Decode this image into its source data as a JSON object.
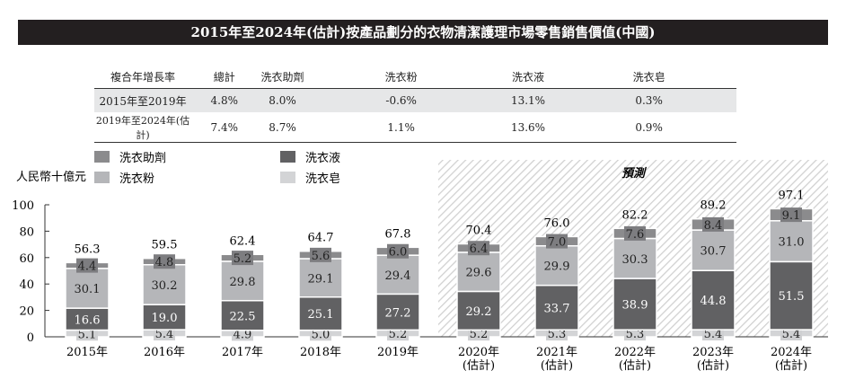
{
  "title": "2015年至2024年(估計)按產品劃分的衣物清潔護理市場零售銷售價值(中國)",
  "cagr_table": {
    "headers": [
      "複合年增長率",
      "總計",
      "洗衣助劑",
      "洗衣粉",
      "洗衣液",
      "洗衣皂"
    ],
    "rows": [
      [
        "2015年至2019年",
        "4.8%",
        "8.0%",
        "-0.6%",
        "13.1%",
        "0.3%"
      ],
      [
        "2019年至2024年(估計)",
        "7.4%",
        "8.7%",
        "1.1%",
        "13.6%",
        "0.9%"
      ]
    ]
  },
  "chart_data": {
    "type": "bar",
    "stacked": true,
    "ylabel": "人民幣十億元",
    "ylim": [
      0,
      100
    ],
    "yticks": [
      0,
      20,
      40,
      60,
      80,
      100
    ],
    "forecast_label": "預測",
    "categories": [
      "2015年",
      "2016年",
      "2017年",
      "2018年",
      "2019年",
      "2020年\n(估計)",
      "2021年\n(估計)",
      "2022年\n(估計)",
      "2023年\n(估計)",
      "2024年\n(估計)"
    ],
    "forecast_start_index": 5,
    "totals": [
      56.3,
      59.5,
      62.4,
      64.7,
      67.8,
      70.4,
      76.0,
      82.2,
      89.2,
      97.1
    ],
    "series": [
      {
        "name": "洗衣皂",
        "color": "#d3d4d6",
        "values": [
          5.1,
          5.4,
          4.9,
          5.0,
          5.2,
          5.2,
          5.3,
          5.3,
          5.4,
          5.4
        ]
      },
      {
        "name": "洗衣液",
        "color": "#616163",
        "values": [
          16.6,
          19.0,
          22.5,
          25.1,
          27.2,
          29.2,
          33.7,
          38.9,
          44.8,
          51.5
        ]
      },
      {
        "name": "洗衣粉",
        "color": "#b5b6b9",
        "values": [
          30.1,
          30.2,
          29.8,
          29.1,
          29.4,
          29.6,
          29.9,
          30.3,
          30.7,
          31.0
        ]
      },
      {
        "name": "洗衣助劑",
        "color": "#8b8b8d",
        "values": [
          4.4,
          4.8,
          5.2,
          5.6,
          6.0,
          6.4,
          7.0,
          7.6,
          8.4,
          9.1
        ]
      }
    ],
    "legend_order": [
      "洗衣助劑",
      "洗衣粉",
      "洗衣液",
      "洗衣皂"
    ],
    "legend_placement": "top-left",
    "grid": false
  }
}
